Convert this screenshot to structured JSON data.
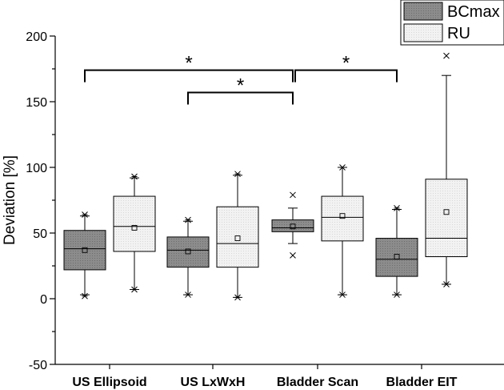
{
  "chart_data": {
    "type": "box",
    "title": "",
    "xlabel": "",
    "ylabel": "Deviation [%]",
    "ylim": [
      -50,
      200
    ],
    "yticks": [
      -50,
      0,
      50,
      100,
      150,
      200
    ],
    "categories": [
      "US Ellipsoid",
      "US LxWxH",
      "Bladder Scan",
      "Bladder EIT"
    ],
    "series": [
      {
        "name": "BCmax",
        "fill": "#8c8c8c",
        "boxes": [
          {
            "category": "US Ellipsoid",
            "whisker_low": 3,
            "q1": 22,
            "median": 38,
            "q3": 52,
            "whisker_high": 63,
            "mean": 37,
            "min_marker": 2,
            "max_marker": 64,
            "outliers": []
          },
          {
            "category": "US LxWxH",
            "whisker_low": 3,
            "q1": 24,
            "median": 37,
            "q3": 47,
            "whisker_high": 59,
            "mean": 36,
            "min_marker": 3,
            "max_marker": 60,
            "outliers": []
          },
          {
            "category": "Bladder Scan",
            "whisker_low": 42,
            "q1": 51,
            "median": 54,
            "q3": 60,
            "whisker_high": 69,
            "mean": 55,
            "min_marker": 33,
            "max_marker": 79,
            "outliers": [
              33,
              79
            ]
          },
          {
            "category": "Bladder EIT",
            "whisker_low": 3,
            "q1": 17,
            "median": 30,
            "q3": 46,
            "whisker_high": 68,
            "mean": 32,
            "min_marker": 3,
            "max_marker": 69,
            "outliers": []
          }
        ]
      },
      {
        "name": "RU",
        "fill": "#f0f0f0",
        "boxes": [
          {
            "category": "US Ellipsoid",
            "whisker_low": 7,
            "q1": 36,
            "median": 55,
            "q3": 78,
            "whisker_high": 92,
            "mean": 54,
            "min_marker": 7,
            "max_marker": 93,
            "outliers": []
          },
          {
            "category": "US LxWxH",
            "whisker_low": 1,
            "q1": 24,
            "median": 42,
            "q3": 70,
            "whisker_high": 94,
            "mean": 46,
            "min_marker": 1,
            "max_marker": 95,
            "outliers": []
          },
          {
            "category": "Bladder Scan",
            "whisker_low": 3,
            "q1": 44,
            "median": 62,
            "q3": 78,
            "whisker_high": 100,
            "mean": 63,
            "min_marker": 3,
            "max_marker": 100,
            "outliers": []
          },
          {
            "category": "Bladder EIT",
            "whisker_low": 11,
            "q1": 32,
            "median": 46,
            "q3": 91,
            "whisker_high": 170,
            "mean": 66,
            "min_marker": 11,
            "max_marker": 185,
            "outliers": [
              185
            ]
          }
        ]
      }
    ],
    "significance": [
      {
        "from": "US Ellipsoid",
        "to": "Bladder Scan",
        "y": 174,
        "label": "*"
      },
      {
        "from": "US LxWxH",
        "to": "Bladder Scan",
        "y": 157,
        "label": "*"
      },
      {
        "from": "Bladder Scan",
        "to": "Bladder EIT",
        "y": 174,
        "label": "*"
      }
    ],
    "legend": {
      "position": "top-right",
      "entries": [
        {
          "label": "BCmax",
          "fill": "#8c8c8c"
        },
        {
          "label": "RU",
          "fill": "#f0f0f0"
        }
      ]
    }
  }
}
